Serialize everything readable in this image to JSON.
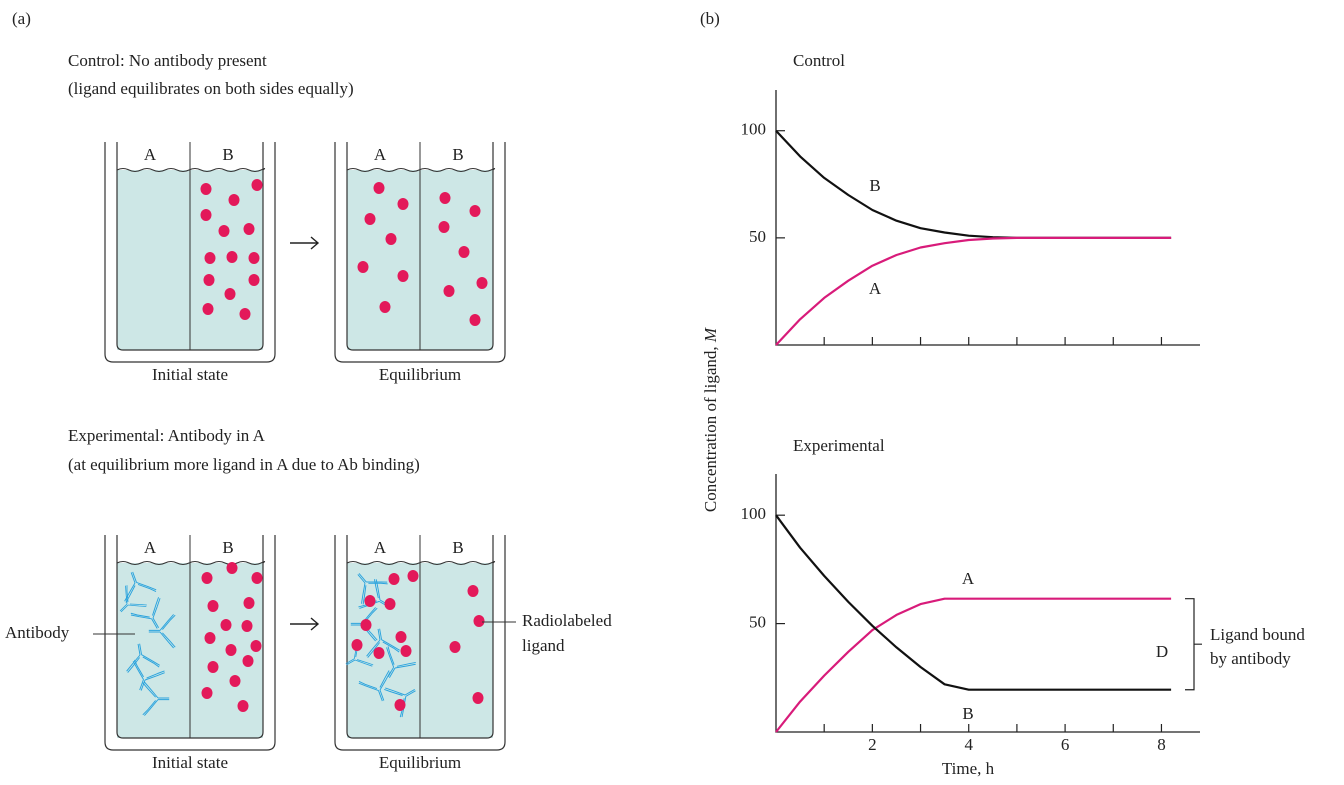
{
  "panel_a": {
    "label": "(a)",
    "control": {
      "title": "Control: No antibody present",
      "subtitle": "(ligand equilibrates on both sides equally)",
      "beakers": [
        {
          "left": "A",
          "right": "B",
          "caption": "Initial state"
        },
        {
          "left": "A",
          "right": "B",
          "caption": "Equilibrium"
        }
      ]
    },
    "experimental": {
      "title": "Experimental: Antibody in A",
      "subtitle": "(at equilibrium more ligand in A due to Ab binding)",
      "beakers": [
        {
          "left": "A",
          "right": "B",
          "caption": "Initial state"
        },
        {
          "left": "A",
          "right": "B",
          "caption": "Equilibrium"
        }
      ],
      "antibody_label": "Antibody",
      "ligand_label": [
        "Radiolabeled",
        "ligand"
      ]
    }
  },
  "panel_b": {
    "label": "(b)",
    "ylabel": "Concentration of ligand, ",
    "ylabel_unit": "M"
  },
  "chart_data": [
    {
      "type": "line",
      "title": "Control",
      "x": [
        0,
        0.5,
        1,
        1.5,
        2,
        2.5,
        3,
        3.5,
        4,
        4.5,
        5,
        6,
        7,
        8.2
      ],
      "series": [
        {
          "name": "B",
          "color": "#111111",
          "values": [
            100,
            88,
            78,
            70,
            63,
            58,
            54.5,
            52.5,
            51,
            50.3,
            50,
            50,
            50,
            50
          ]
        },
        {
          "name": "A",
          "color": "#d81b7a",
          "values": [
            0,
            12,
            22,
            30,
            37,
            42,
            45.5,
            47.5,
            49,
            49.7,
            50,
            50,
            50,
            50
          ]
        }
      ],
      "xlim": [
        0,
        8.8
      ],
      "ylim": [
        0,
        119
      ],
      "yticks": [
        50,
        100
      ],
      "minor_xticks": [
        1,
        2,
        3,
        4,
        5,
        6,
        7,
        8
      ]
    },
    {
      "type": "line",
      "title": "Experimental",
      "xlabel": "Time, h",
      "x": [
        0,
        0.5,
        1,
        1.5,
        2,
        2.5,
        3,
        3.5,
        4,
        5,
        6,
        7,
        8.2
      ],
      "series": [
        {
          "name": "A",
          "color": "#d81b7a",
          "values": [
            0,
            14,
            26,
            37,
            47,
            54,
            59,
            61.5,
            61.5,
            61.5,
            61.5,
            61.5,
            61.5
          ]
        },
        {
          "name": "B",
          "color": "#111111",
          "values": [
            100,
            85,
            72,
            60,
            49,
            39,
            30,
            22,
            19.5,
            19.5,
            19.5,
            19.5,
            19.5
          ]
        }
      ],
      "xlim": [
        0,
        8.8
      ],
      "ylim": [
        0,
        119
      ],
      "yticks": [
        50,
        100
      ],
      "xticks": [
        2,
        4,
        6,
        8
      ],
      "minor_xticks": [
        1,
        3,
        5,
        7
      ],
      "annotation": "D",
      "annotation_lines": [
        "Ligand bound",
        "by antibody"
      ]
    }
  ]
}
